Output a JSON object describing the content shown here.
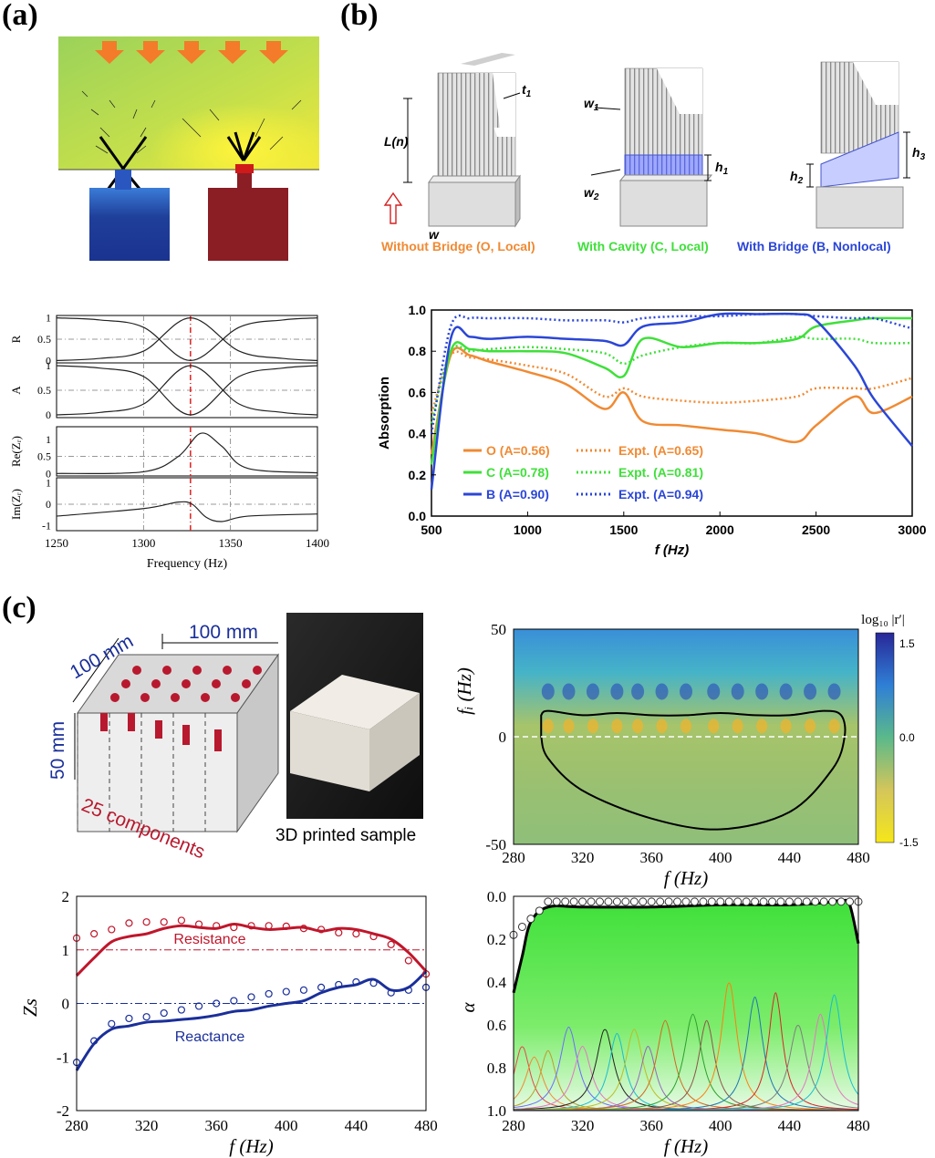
{
  "panels": {
    "a": "(a)",
    "b": "(b)",
    "c": "(c)"
  },
  "colors": {
    "orange": "#f08a33",
    "green": "#3fe03a",
    "blue": "#2b46d6",
    "red": "#c0162b",
    "navy": "#1a2f9a"
  },
  "panel_b": {
    "labels": {
      "t1": "t",
      "t1_sub": "1",
      "L": "L(n)",
      "w": "w",
      "w1": "w",
      "w1_sub": "1",
      "w2": "w",
      "w2_sub": "2",
      "h1": "h",
      "h1_sub": "1",
      "h2": "h",
      "h2_sub": "2",
      "h3": "h",
      "h3_sub": "3"
    },
    "captions": [
      "Without Bridge (O, Local)",
      "With Cavity (C, Local)",
      "With Bridge (B, Nonlocal)"
    ]
  },
  "panel_c": {
    "dims": {
      "width1": "100 mm",
      "width2": "100 mm",
      "height": "50 mm",
      "components": "25 components"
    },
    "photo_caption": "3D printed sample",
    "colorbar": {
      "title": "log₁₀ |r′|",
      "max": "1.5",
      "mid": "0.0",
      "min": "-1.5"
    }
  },
  "chart_data": [
    {
      "type": "line",
      "title": "",
      "xlabel": "Frequency (Hz)",
      "xlim": [
        1250,
        1400
      ],
      "xticks": [
        "1250",
        "1300",
        "1350",
        "1400"
      ],
      "marker_line_x": 1327,
      "subplots": [
        {
          "ylabel": "R",
          "yticks": [
            "1",
            "0.5",
            "0"
          ],
          "values_desc": [
            1.0,
            0.95,
            0.78,
            0.0,
            0.78,
            0.95,
            1.0
          ],
          "x": [
            1250,
            1275,
            1300,
            1327,
            1355,
            1380,
            1400
          ]
        },
        {
          "ylabel": "A",
          "yticks": [
            "1",
            "0.5",
            "0"
          ],
          "x": [
            1250,
            1275,
            1300,
            1327,
            1355,
            1380,
            1400
          ],
          "values": [
            0.0,
            0.05,
            0.22,
            1.0,
            0.22,
            0.05,
            0.0
          ]
        },
        {
          "ylabel": "Re(Zᵣ)",
          "yticks": [
            "1",
            "0.5",
            "0"
          ],
          "x": [
            1250,
            1300,
            1320,
            1333,
            1345,
            1360,
            1400
          ],
          "values": [
            0.0,
            0.05,
            0.5,
            1.18,
            0.8,
            0.15,
            0.02
          ]
        },
        {
          "ylabel": "Im(Zᵣ)",
          "yticks": [
            "1",
            "0",
            "-1"
          ],
          "x": [
            1250,
            1300,
            1320,
            1328,
            1336,
            1345,
            1360,
            1400
          ],
          "values": [
            -0.55,
            -0.2,
            0.1,
            0.0,
            -0.6,
            -0.8,
            -0.55,
            -0.45
          ]
        }
      ]
    },
    {
      "type": "line",
      "title": "",
      "xlabel": "f (Hz)",
      "ylabel": "Absorption",
      "xlim": [
        500,
        3000
      ],
      "ylim": [
        0.0,
        1.0
      ],
      "xticks": [
        "500",
        "1000",
        "1500",
        "2000",
        "2500",
        "3000"
      ],
      "yticks": [
        "0.0",
        "0.2",
        "0.4",
        "0.6",
        "0.8",
        "1.0"
      ],
      "legend": [
        {
          "name": "O (A=0.56)",
          "expt": "Expt. (A=0.65)"
        },
        {
          "name": "C (A=0.78)",
          "expt": "Expt. (A=0.81)"
        },
        {
          "name": "B (A=0.90)",
          "expt": "Expt. (A=0.94)"
        }
      ],
      "x": [
        500,
        600,
        700,
        800,
        1000,
        1200,
        1400,
        1500,
        1600,
        1800,
        2000,
        2200,
        2400,
        2500,
        2700,
        2800,
        3000
      ],
      "series": [
        {
          "name": "O",
          "values": [
            0.3,
            0.78,
            0.78,
            0.75,
            0.7,
            0.64,
            0.52,
            0.6,
            0.46,
            0.44,
            0.42,
            0.4,
            0.36,
            0.44,
            0.58,
            0.5,
            0.58
          ]
        },
        {
          "name": "O Expt.",
          "values": [
            0.5,
            0.78,
            0.77,
            0.76,
            0.73,
            0.69,
            0.58,
            0.62,
            0.58,
            0.56,
            0.55,
            0.56,
            0.58,
            0.62,
            0.62,
            0.62,
            0.67
          ]
        },
        {
          "name": "C",
          "values": [
            0.25,
            0.8,
            0.81,
            0.8,
            0.8,
            0.79,
            0.72,
            0.68,
            0.86,
            0.82,
            0.84,
            0.84,
            0.86,
            0.92,
            0.95,
            0.96,
            0.96
          ]
        },
        {
          "name": "C Expt.",
          "values": [
            0.45,
            0.8,
            0.8,
            0.81,
            0.82,
            0.81,
            0.79,
            0.74,
            0.78,
            0.82,
            0.84,
            0.84,
            0.87,
            0.86,
            0.86,
            0.84,
            0.84
          ]
        },
        {
          "name": "B",
          "values": [
            0.13,
            0.86,
            0.87,
            0.86,
            0.87,
            0.86,
            0.85,
            0.83,
            0.92,
            0.94,
            0.98,
            0.98,
            0.98,
            0.95,
            0.73,
            0.57,
            0.34
          ]
        },
        {
          "name": "B Expt.",
          "values": [
            0.4,
            0.92,
            0.96,
            0.96,
            0.96,
            0.95,
            0.95,
            0.94,
            0.96,
            0.97,
            0.97,
            0.98,
            0.98,
            0.97,
            0.96,
            0.96,
            0.91
          ]
        }
      ]
    },
    {
      "type": "heatmap",
      "title": "",
      "xlabel": "f (Hz)",
      "ylabel": "fᵢ (Hz)",
      "xlim": [
        280,
        480
      ],
      "ylim": [
        -50,
        50
      ],
      "xticks": [
        "280",
        "320",
        "360",
        "400",
        "440",
        "480"
      ],
      "yticks": [
        "50",
        "0",
        "-50"
      ],
      "zlim": [
        -1.5,
        1.5
      ],
      "contour_x": [
        296,
        300,
        320,
        340,
        360,
        380,
        400,
        420,
        440,
        460,
        470,
        472,
        465,
        440,
        400,
        360,
        320,
        300,
        296
      ],
      "contour_y": [
        10,
        12,
        10,
        11,
        10,
        10,
        11,
        10,
        10,
        12,
        10,
        0,
        -15,
        -35,
        -43,
        -38,
        -25,
        -10,
        0
      ]
    },
    {
      "type": "line",
      "title": "",
      "xlabel": "f (Hz)",
      "ylabel": "Zs",
      "xlim": [
        280,
        480
      ],
      "ylim": [
        -2,
        2
      ],
      "xticks": [
        "280",
        "320",
        "360",
        "400",
        "440",
        "480"
      ],
      "yticks": [
        "2",
        "1",
        "0",
        "-1",
        "-2"
      ],
      "annotations": [
        "Resistance",
        "Reactance"
      ],
      "x": [
        280,
        290,
        300,
        310,
        320,
        330,
        340,
        350,
        360,
        370,
        380,
        390,
        400,
        410,
        420,
        430,
        440,
        450,
        460,
        470,
        480
      ],
      "series": [
        {
          "name": "Resistance",
          "values": [
            0.52,
            0.85,
            1.15,
            1.25,
            1.3,
            1.4,
            1.45,
            1.42,
            1.4,
            1.48,
            1.42,
            1.38,
            1.4,
            1.42,
            1.35,
            1.4,
            1.38,
            1.3,
            1.2,
            0.95,
            0.6
          ]
        },
        {
          "name": "Resistance expt",
          "values": [
            1.22,
            1.3,
            1.38,
            1.5,
            1.52,
            1.52,
            1.55,
            1.48,
            1.45,
            1.42,
            1.45,
            1.45,
            1.44,
            1.4,
            1.38,
            1.32,
            1.3,
            1.25,
            1.1,
            0.8,
            0.55
          ]
        },
        {
          "name": "Reactance",
          "values": [
            -1.25,
            -0.75,
            -0.48,
            -0.42,
            -0.35,
            -0.33,
            -0.3,
            -0.27,
            -0.22,
            -0.15,
            -0.12,
            -0.05,
            0.0,
            0.05,
            0.2,
            0.3,
            0.35,
            0.45,
            0.25,
            0.3,
            0.6
          ]
        },
        {
          "name": "Reactance expt",
          "values": [
            -1.1,
            -0.7,
            -0.38,
            -0.28,
            -0.25,
            -0.18,
            -0.12,
            -0.05,
            0.0,
            0.05,
            0.12,
            0.18,
            0.22,
            0.25,
            0.3,
            0.35,
            0.4,
            0.38,
            0.2,
            0.25,
            0.3
          ]
        }
      ]
    },
    {
      "type": "area",
      "title": "",
      "xlabel": "f (Hz)",
      "ylabel": "α",
      "xlim": [
        280,
        480
      ],
      "ylim": [
        0,
        1
      ],
      "xticks": [
        "280",
        "320",
        "360",
        "400",
        "440",
        "480"
      ],
      "yticks": [
        "0.0",
        "0.2",
        "0.4",
        "0.6",
        "0.8",
        "1.0"
      ],
      "total": {
        "x": [
          280,
          285,
          290,
          300,
          320,
          360,
          400,
          440,
          460,
          470,
          475,
          480
        ],
        "values": [
          0.55,
          0.72,
          0.88,
          0.95,
          0.95,
          0.95,
          0.96,
          0.96,
          0.97,
          0.98,
          0.96,
          0.78
        ]
      },
      "expt_points": {
        "x": [
          280,
          283,
          286,
          290,
          295,
          300,
          320,
          360,
          400,
          440,
          470,
          475,
          478,
          480
        ],
        "values": [
          0.82,
          0.88,
          0.92,
          0.95,
          0.96,
          0.97,
          0.97,
          0.97,
          0.98,
          0.98,
          0.99,
          0.99,
          0.99,
          0.98
        ]
      },
      "peaks": [
        {
          "f0": 285,
          "h": 0.3,
          "w": 9
        },
        {
          "f0": 292,
          "h": 0.25,
          "w": 10
        },
        {
          "f0": 300,
          "h": 0.28,
          "w": 9
        },
        {
          "f0": 312,
          "h": 0.39,
          "w": 10
        },
        {
          "f0": 320,
          "h": 0.3,
          "w": 10
        },
        {
          "f0": 333,
          "h": 0.38,
          "w": 10
        },
        {
          "f0": 340,
          "h": 0.36,
          "w": 9
        },
        {
          "f0": 350,
          "h": 0.38,
          "w": 10
        },
        {
          "f0": 358,
          "h": 0.3,
          "w": 9
        },
        {
          "f0": 368,
          "h": 0.42,
          "w": 10
        },
        {
          "f0": 384,
          "h": 0.45,
          "w": 10
        },
        {
          "f0": 392,
          "h": 0.42,
          "w": 9
        },
        {
          "f0": 405,
          "h": 0.6,
          "w": 9
        },
        {
          "f0": 420,
          "h": 0.53,
          "w": 9
        },
        {
          "f0": 432,
          "h": 0.55,
          "w": 8
        },
        {
          "f0": 445,
          "h": 0.4,
          "w": 10
        },
        {
          "f0": 458,
          "h": 0.45,
          "w": 9
        },
        {
          "f0": 466,
          "h": 0.54,
          "w": 9
        }
      ]
    }
  ]
}
